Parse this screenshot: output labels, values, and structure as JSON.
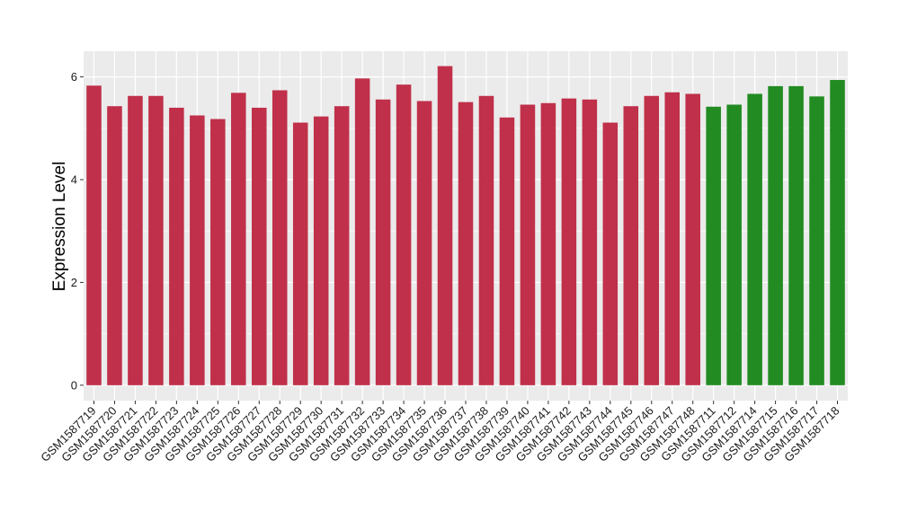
{
  "chart_data": {
    "type": "bar",
    "title": "",
    "xlabel": "",
    "ylabel": "Expression Level",
    "ylim": [
      -0.3,
      6.5
    ],
    "yticks": [
      0,
      2,
      4,
      6
    ],
    "grid": true,
    "legend": "none",
    "categories": [
      "GSM1587719",
      "GSM1587720",
      "GSM1587721",
      "GSM1587722",
      "GSM1587723",
      "GSM1587724",
      "GSM1587725",
      "GSM1587726",
      "GSM1587727",
      "GSM1587728",
      "GSM1587729",
      "GSM1587730",
      "GSM1587731",
      "GSM1587732",
      "GSM1587733",
      "GSM1587734",
      "GSM1587735",
      "GSM1587736",
      "GSM1587737",
      "GSM1587738",
      "GSM1587739",
      "GSM1587740",
      "GSM1587741",
      "GSM1587742",
      "GSM1587743",
      "GSM1587744",
      "GSM1587745",
      "GSM1587746",
      "GSM1587747",
      "GSM1587748",
      "GSM1587711",
      "GSM1587712",
      "GSM1587714",
      "GSM1587715",
      "GSM1587716",
      "GSM1587717",
      "GSM1587718"
    ],
    "values": [
      5.83,
      5.43,
      5.63,
      5.63,
      5.4,
      5.25,
      5.18,
      5.69,
      5.4,
      5.74,
      5.11,
      5.23,
      5.43,
      5.97,
      5.56,
      5.85,
      5.53,
      6.21,
      5.51,
      5.63,
      5.21,
      5.46,
      5.49,
      5.58,
      5.56,
      5.11,
      5.43,
      5.63,
      5.7,
      5.67,
      5.42,
      5.46,
      5.67,
      5.82,
      5.82,
      5.62,
      5.94
    ],
    "groups": [
      "red",
      "red",
      "red",
      "red",
      "red",
      "red",
      "red",
      "red",
      "red",
      "red",
      "red",
      "red",
      "red",
      "red",
      "red",
      "red",
      "red",
      "red",
      "red",
      "red",
      "red",
      "red",
      "red",
      "red",
      "red",
      "red",
      "red",
      "red",
      "red",
      "red",
      "green",
      "green",
      "green",
      "green",
      "green",
      "green",
      "green"
    ],
    "colors": {
      "red": "#c0304a",
      "green": "#228b22"
    },
    "panel_background": "#ebebeb",
    "gridline_color": "#ffffff"
  }
}
